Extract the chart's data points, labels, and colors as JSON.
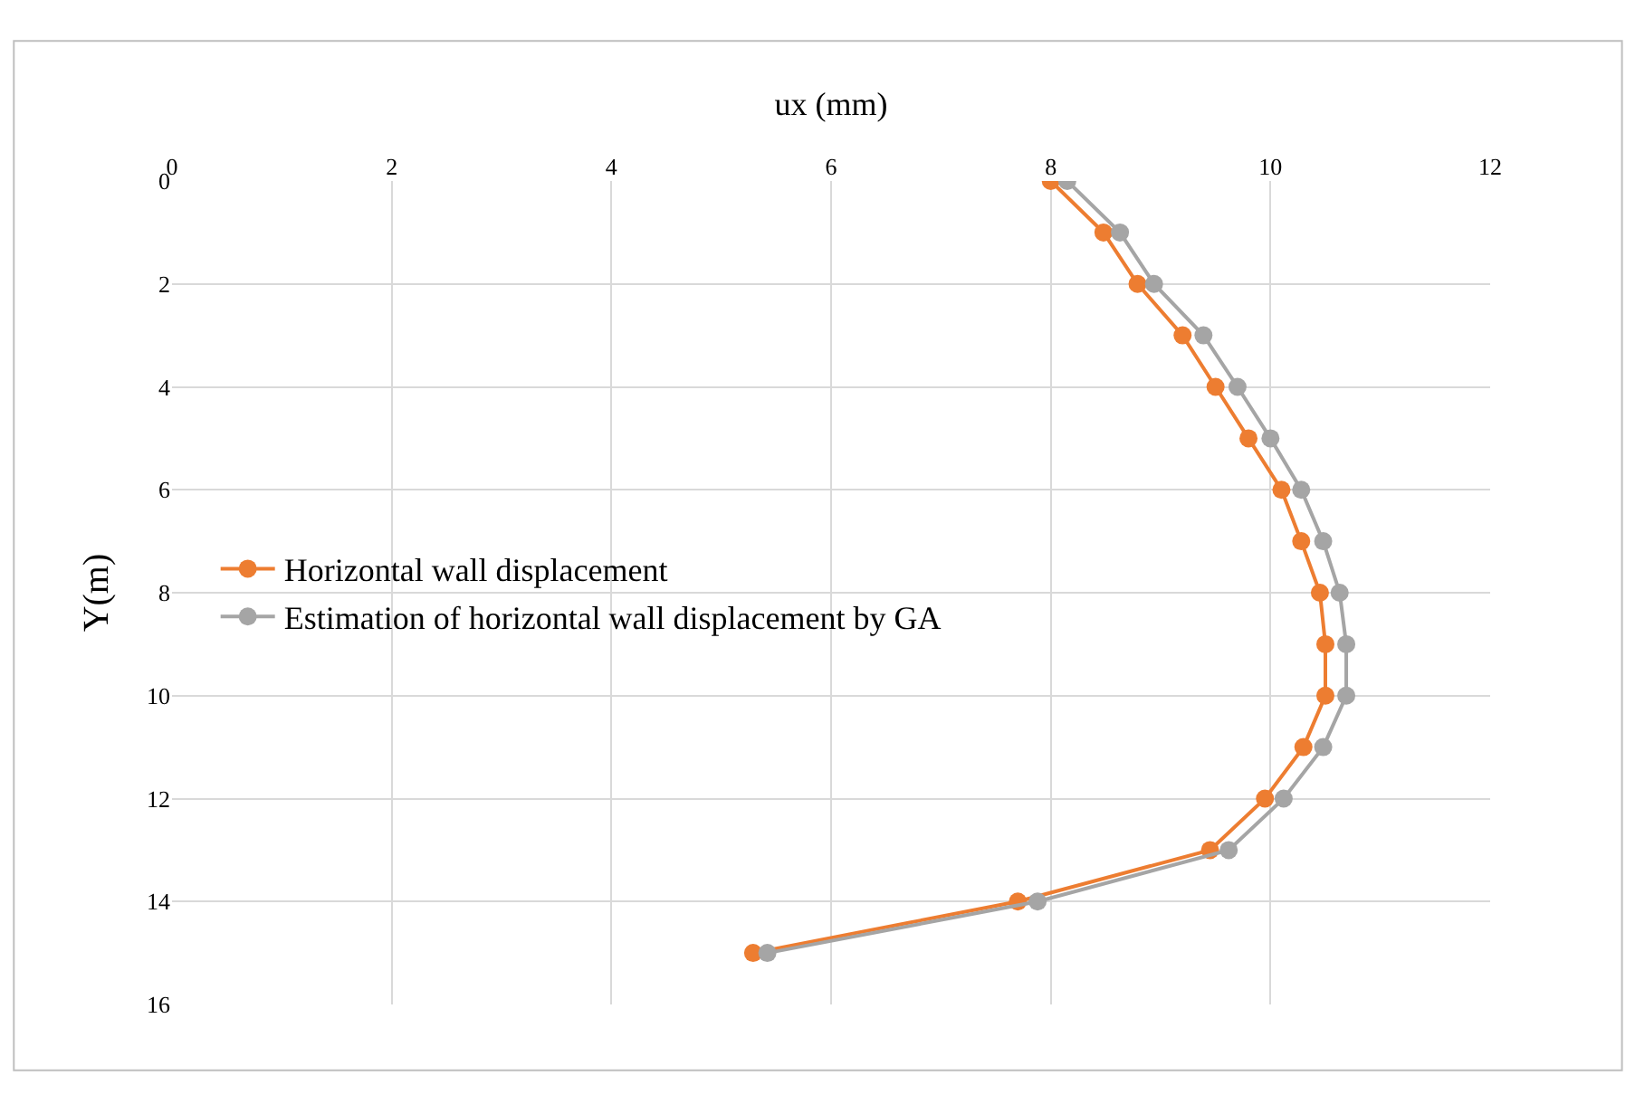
{
  "chart_data": {
    "type": "line",
    "xlabel": "ux (mm)",
    "ylabel": "Y(m)",
    "xlim": [
      0,
      12
    ],
    "xticks": [
      0,
      2,
      4,
      6,
      8,
      10,
      12
    ],
    "ylim": [
      16,
      0
    ],
    "yticks": [
      0,
      2,
      4,
      6,
      8,
      10,
      12,
      14,
      16
    ],
    "grid": true,
    "legend": "left",
    "marker": "circle",
    "line_style": "solid",
    "series": [
      {
        "name": "Horizontal wall displacement",
        "color": "#ed7d31",
        "x": [
          8.0,
          8.48,
          8.79,
          9.2,
          9.5,
          9.8,
          10.1,
          10.28,
          10.45,
          10.5,
          10.5,
          10.3,
          9.95,
          9.45,
          7.7,
          5.29
        ],
        "values": [
          0,
          1,
          2,
          3,
          4,
          5,
          6,
          7,
          8,
          9,
          10,
          11,
          12,
          13,
          14,
          15
        ]
      },
      {
        "name": "Estimation of horizontal wall displacement by GA",
        "color": "#a5a5a5",
        "x": [
          8.15,
          8.63,
          8.94,
          9.39,
          9.7,
          10.0,
          10.28,
          10.48,
          10.63,
          10.69,
          10.69,
          10.48,
          10.12,
          9.62,
          7.88,
          5.42
        ],
        "values": [
          0,
          1,
          2,
          3,
          4,
          5,
          6,
          7,
          8,
          9,
          10,
          11,
          12,
          13,
          14,
          15
        ]
      }
    ]
  }
}
